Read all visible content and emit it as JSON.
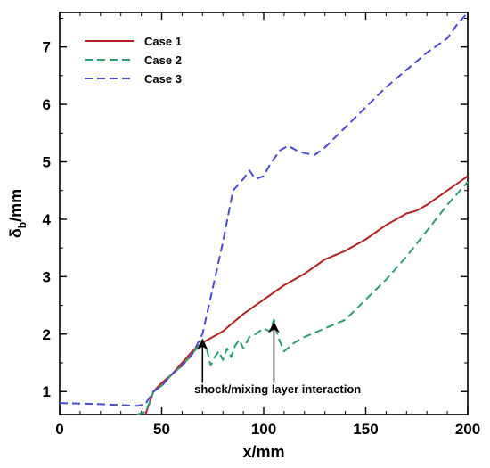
{
  "chart_data": {
    "type": "line",
    "title": "",
    "xlabel": "x/mm",
    "ylabel_symbol": "δ",
    "ylabel_sub": "b",
    "ylabel_unit": "/mm",
    "xlim": [
      0,
      200
    ],
    "ylim": [
      0.6,
      7.6
    ],
    "xticks": [
      0,
      50,
      100,
      150,
      200
    ],
    "yticks": [
      1,
      2,
      3,
      4,
      5,
      6,
      7
    ],
    "grid": false,
    "legend_position": "top-left",
    "series": [
      {
        "name": "Case 1",
        "color": "#b22222",
        "style": "solid",
        "points": [
          [
            42,
            0.6
          ],
          [
            44,
            0.8
          ],
          [
            46,
            1.0
          ],
          [
            50,
            1.15
          ],
          [
            55,
            1.3
          ],
          [
            60,
            1.5
          ],
          [
            65,
            1.7
          ],
          [
            70,
            1.85
          ],
          [
            75,
            1.95
          ],
          [
            80,
            2.05
          ],
          [
            85,
            2.2
          ],
          [
            90,
            2.35
          ],
          [
            100,
            2.6
          ],
          [
            110,
            2.85
          ],
          [
            120,
            3.05
          ],
          [
            130,
            3.3
          ],
          [
            140,
            3.45
          ],
          [
            150,
            3.65
          ],
          [
            160,
            3.9
          ],
          [
            170,
            4.1
          ],
          [
            175,
            4.15
          ],
          [
            180,
            4.25
          ],
          [
            190,
            4.5
          ],
          [
            200,
            4.75
          ]
        ]
      },
      {
        "name": "Case 2",
        "color": "#2e9e6a",
        "style": "dashed",
        "points": [
          [
            38,
            0.6
          ],
          [
            42,
            0.65
          ],
          [
            44,
            0.8
          ],
          [
            46,
            1.0
          ],
          [
            50,
            1.1
          ],
          [
            55,
            1.3
          ],
          [
            60,
            1.45
          ],
          [
            65,
            1.65
          ],
          [
            68,
            1.8
          ],
          [
            70,
            1.9
          ],
          [
            72,
            1.75
          ],
          [
            74,
            1.45
          ],
          [
            76,
            1.6
          ],
          [
            78,
            1.7
          ],
          [
            80,
            1.55
          ],
          [
            82,
            1.75
          ],
          [
            84,
            1.6
          ],
          [
            86,
            1.8
          ],
          [
            88,
            1.9
          ],
          [
            90,
            1.75
          ],
          [
            93,
            1.95
          ],
          [
            96,
            2.0
          ],
          [
            100,
            2.1
          ],
          [
            103,
            2.05
          ],
          [
            105,
            2.25
          ],
          [
            107,
            1.95
          ],
          [
            110,
            1.7
          ],
          [
            115,
            1.85
          ],
          [
            120,
            1.95
          ],
          [
            130,
            2.1
          ],
          [
            140,
            2.25
          ],
          [
            150,
            2.6
          ],
          [
            160,
            2.95
          ],
          [
            170,
            3.35
          ],
          [
            180,
            3.8
          ],
          [
            190,
            4.25
          ],
          [
            200,
            4.65
          ]
        ]
      },
      {
        "name": "Case 3",
        "color": "#4a4ad0",
        "style": "dashed",
        "points": [
          [
            0,
            0.8
          ],
          [
            20,
            0.78
          ],
          [
            38,
            0.75
          ],
          [
            42,
            0.78
          ],
          [
            46,
            1.0
          ],
          [
            50,
            1.1
          ],
          [
            55,
            1.3
          ],
          [
            60,
            1.45
          ],
          [
            65,
            1.65
          ],
          [
            70,
            2.0
          ],
          [
            75,
            2.8
          ],
          [
            80,
            3.6
          ],
          [
            85,
            4.5
          ],
          [
            90,
            4.7
          ],
          [
            93,
            4.85
          ],
          [
            96,
            4.7
          ],
          [
            100,
            4.75
          ],
          [
            103,
            4.95
          ],
          [
            108,
            5.2
          ],
          [
            112,
            5.28
          ],
          [
            116,
            5.2
          ],
          [
            120,
            5.15
          ],
          [
            125,
            5.12
          ],
          [
            130,
            5.25
          ],
          [
            140,
            5.6
          ],
          [
            150,
            5.95
          ],
          [
            160,
            6.3
          ],
          [
            170,
            6.6
          ],
          [
            180,
            6.9
          ],
          [
            190,
            7.15
          ],
          [
            195,
            7.4
          ],
          [
            200,
            7.6
          ]
        ]
      }
    ],
    "annotation": {
      "text": "shock/mixing layer interaction",
      "arrows": [
        {
          "from": [
            70,
            1.15
          ],
          "to": [
            70,
            1.9
          ]
        },
        {
          "from": [
            105,
            1.15
          ],
          "to": [
            105,
            2.2
          ]
        }
      ]
    }
  }
}
